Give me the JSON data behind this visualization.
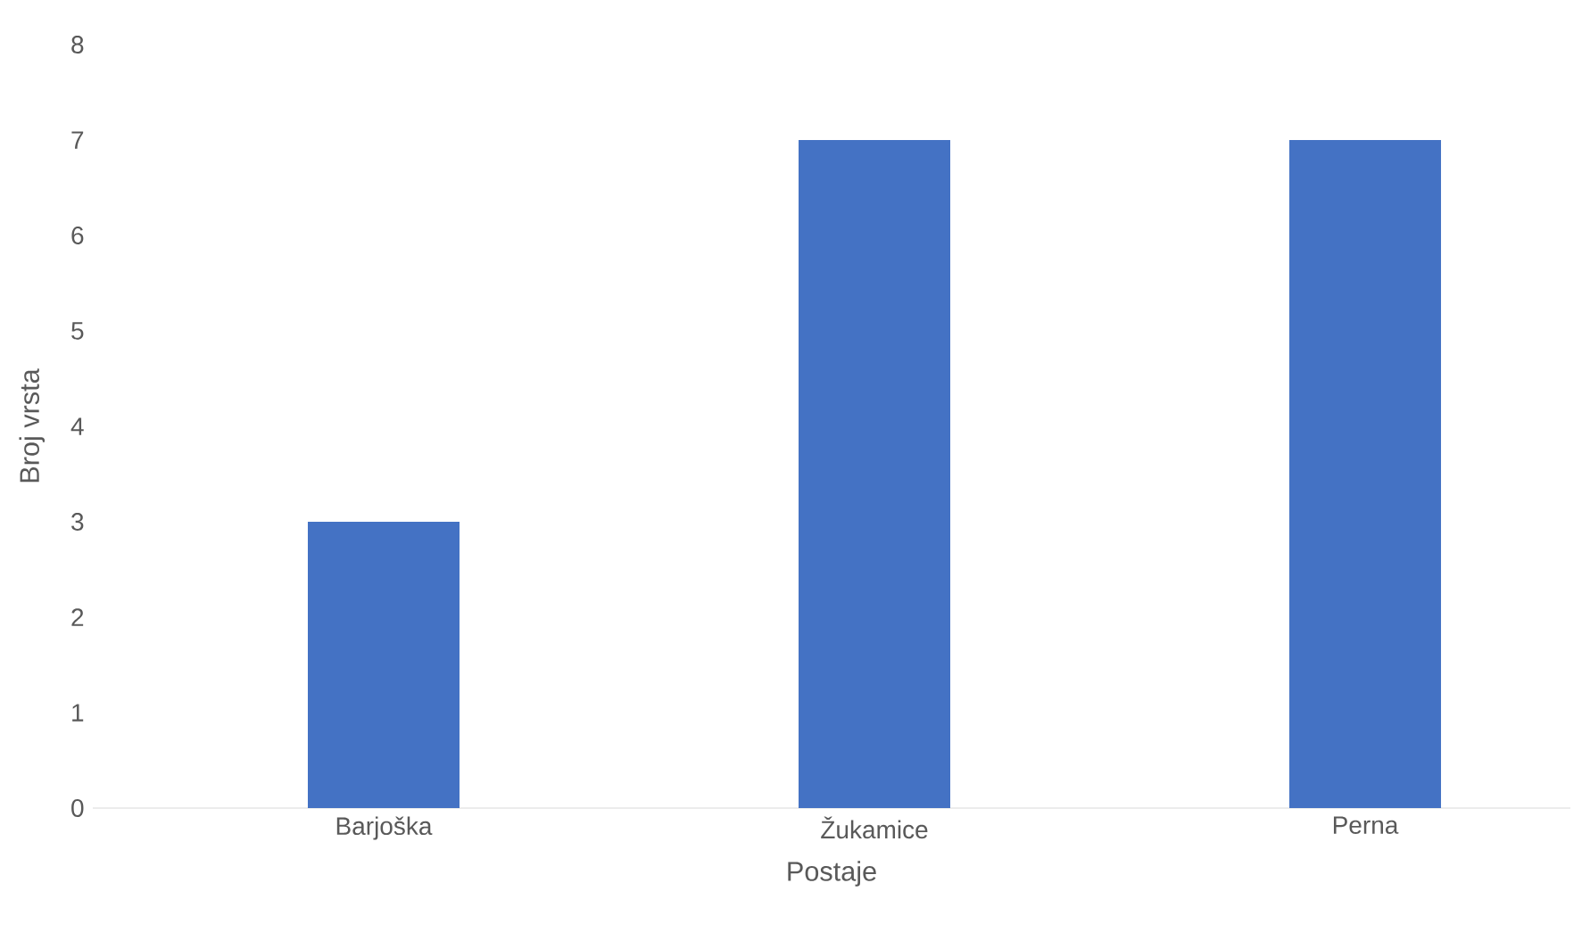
{
  "chart_data": {
    "type": "bar",
    "xlabel": "Postaje",
    "ylabel": "Broj vrsta",
    "categories": [
      "Barjoška",
      "Žukamice",
      "Perna"
    ],
    "values": [
      3,
      7,
      7
    ],
    "color": "#4472c4",
    "ylim": [
      0,
      8
    ],
    "yticks": [
      0,
      1,
      2,
      3,
      4,
      5,
      6,
      7,
      8
    ]
  }
}
